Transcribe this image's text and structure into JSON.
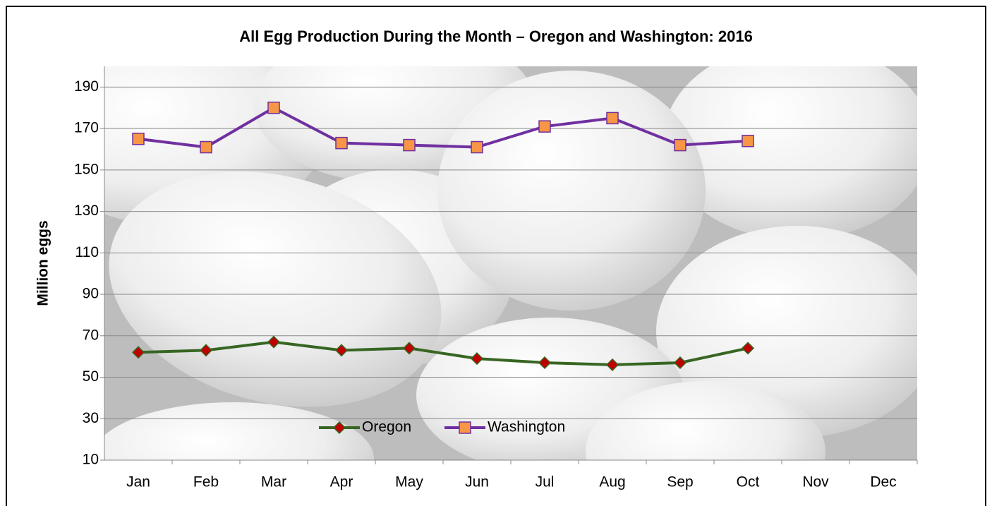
{
  "chart_data": {
    "type": "line",
    "title": "All Egg Production During the Month –  Oregon and Washington: 2016",
    "y_label": "Million eggs",
    "categories": [
      "Jan",
      "Feb",
      "Mar",
      "Apr",
      "May",
      "Jun",
      "Jul",
      "Aug",
      "Sep",
      "Oct",
      "Nov",
      "Dec"
    ],
    "series": [
      {
        "name": "Oregon",
        "color": "#376623",
        "marker_color": "#c00000",
        "marker": "diamond",
        "values": [
          62,
          63,
          67,
          63,
          64,
          59,
          57,
          56,
          57,
          64,
          null,
          null
        ]
      },
      {
        "name": "Washington",
        "color": "#7030a0",
        "marker_color": "#f79646",
        "marker": "square",
        "values": [
          165,
          161,
          180,
          163,
          162,
          161,
          171,
          175,
          162,
          164,
          null,
          null
        ]
      }
    ],
    "ylim": [
      10,
      200
    ],
    "yticks": [
      10,
      30,
      50,
      70,
      90,
      110,
      130,
      150,
      170,
      190
    ],
    "grid": true,
    "legend": "bottom"
  }
}
